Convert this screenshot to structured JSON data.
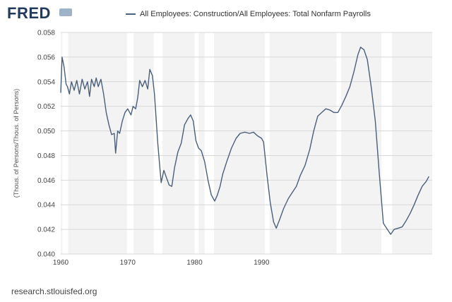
{
  "header": {
    "logo_text": "FRED",
    "logo_icon": "chart-line-icon",
    "source": "research.stlouisfed.org"
  },
  "chart_data": {
    "type": "line",
    "series": [
      {
        "name": "All Employees: Construction/All Employees: Total Nonfarm Payrolls",
        "color": "#4a5f7a",
        "points": [
          [
            1960.0,
            0.0531
          ],
          [
            1960.2,
            0.056
          ],
          [
            1960.5,
            0.0552
          ],
          [
            1960.8,
            0.0538
          ],
          [
            1961.0,
            0.0536
          ],
          [
            1961.3,
            0.053
          ],
          [
            1961.6,
            0.054
          ],
          [
            1962.0,
            0.0533
          ],
          [
            1962.4,
            0.0541
          ],
          [
            1962.8,
            0.053
          ],
          [
            1963.2,
            0.0542
          ],
          [
            1963.6,
            0.0534
          ],
          [
            1964.0,
            0.054
          ],
          [
            1964.3,
            0.0528
          ],
          [
            1964.6,
            0.0542
          ],
          [
            1965.0,
            0.0536
          ],
          [
            1965.3,
            0.0543
          ],
          [
            1965.6,
            0.0536
          ],
          [
            1966.0,
            0.0542
          ],
          [
            1966.4,
            0.053
          ],
          [
            1966.8,
            0.0515
          ],
          [
            1967.2,
            0.0505
          ],
          [
            1967.6,
            0.0497
          ],
          [
            1968.0,
            0.0498
          ],
          [
            1968.2,
            0.0482
          ],
          [
            1968.5,
            0.05
          ],
          [
            1968.8,
            0.0498
          ],
          [
            1969.2,
            0.0508
          ],
          [
            1969.6,
            0.0515
          ],
          [
            1970.0,
            0.0518
          ],
          [
            1970.5,
            0.0513
          ],
          [
            1970.8,
            0.052
          ],
          [
            1971.2,
            0.0518
          ],
          [
            1971.5,
            0.0527
          ],
          [
            1971.8,
            0.0541
          ],
          [
            1972.2,
            0.0536
          ],
          [
            1972.6,
            0.0541
          ],
          [
            1973.0,
            0.0534
          ],
          [
            1973.3,
            0.055
          ],
          [
            1973.7,
            0.0545
          ],
          [
            1974.0,
            0.053
          ],
          [
            1974.5,
            0.049
          ],
          [
            1975.0,
            0.0458
          ],
          [
            1975.4,
            0.0468
          ],
          [
            1975.8,
            0.0462
          ],
          [
            1976.2,
            0.0456
          ],
          [
            1976.6,
            0.0455
          ],
          [
            1977.0,
            0.047
          ],
          [
            1977.5,
            0.0483
          ],
          [
            1978.0,
            0.049
          ],
          [
            1978.5,
            0.0505
          ],
          [
            1979.0,
            0.051
          ],
          [
            1979.4,
            0.0513
          ],
          [
            1979.8,
            0.0508
          ],
          [
            1980.2,
            0.0492
          ],
          [
            1980.6,
            0.0486
          ],
          [
            1981.0,
            0.0484
          ],
          [
            1981.5,
            0.0475
          ],
          [
            1982.0,
            0.046
          ],
          [
            1982.5,
            0.0448
          ],
          [
            1983.0,
            0.0443
          ],
          [
            1983.4,
            0.0448
          ],
          [
            1983.8,
            0.0455
          ],
          [
            1984.2,
            0.0465
          ],
          [
            1984.8,
            0.0475
          ],
          [
            1985.5,
            0.0486
          ],
          [
            1986.2,
            0.0494
          ],
          [
            1986.8,
            0.0498
          ],
          [
            1987.5,
            0.0499
          ],
          [
            1988.2,
            0.0498
          ],
          [
            1988.8,
            0.0499
          ],
          [
            1989.4,
            0.0496
          ],
          [
            1990.0,
            0.0494
          ],
          [
            1990.3,
            0.0491
          ],
          [
            1990.8,
            0.0465
          ],
          [
            1991.3,
            0.0442
          ],
          [
            1991.8,
            0.0426
          ],
          [
            1992.2,
            0.0421
          ],
          [
            1992.7,
            0.0428
          ],
          [
            1993.3,
            0.0437
          ],
          [
            1994.0,
            0.0445
          ],
          [
            1994.6,
            0.045
          ],
          [
            1995.2,
            0.0455
          ],
          [
            1995.8,
            0.0464
          ],
          [
            1996.5,
            0.0472
          ],
          [
            1997.2,
            0.0485
          ],
          [
            1997.8,
            0.05
          ],
          [
            1998.4,
            0.0512
          ],
          [
            1999.0,
            0.0515
          ],
          [
            1999.6,
            0.0518
          ],
          [
            2000.2,
            0.0517
          ],
          [
            2000.8,
            0.0515
          ],
          [
            2001.4,
            0.0515
          ],
          [
            2002.0,
            0.0521
          ],
          [
            2002.6,
            0.0528
          ],
          [
            2003.2,
            0.0536
          ],
          [
            2003.8,
            0.0548
          ],
          [
            2004.4,
            0.0562
          ],
          [
            2004.8,
            0.0568
          ],
          [
            2005.3,
            0.0566
          ],
          [
            2005.8,
            0.0558
          ],
          [
            2006.4,
            0.0535
          ],
          [
            2007.0,
            0.0508
          ],
          [
            2007.6,
            0.0465
          ],
          [
            2008.2,
            0.0425
          ],
          [
            2008.8,
            0.042
          ],
          [
            2009.3,
            0.0416
          ],
          [
            2009.8,
            0.042
          ],
          [
            2010.4,
            0.0421
          ],
          [
            2011.0,
            0.0422
          ],
          [
            2011.6,
            0.0427
          ],
          [
            2012.2,
            0.0433
          ],
          [
            2012.8,
            0.044
          ],
          [
            2013.4,
            0.0448
          ],
          [
            2014.0,
            0.0455
          ],
          [
            2014.6,
            0.0459
          ],
          [
            2015.0,
            0.0463
          ]
        ]
      }
    ],
    "recessions": [
      [
        1960.25,
        1961.1
      ],
      [
        1969.9,
        1970.9
      ],
      [
        1973.9,
        1975.2
      ],
      [
        1980.0,
        1980.6
      ],
      [
        1981.5,
        1982.9
      ],
      [
        1990.5,
        1991.2
      ],
      [
        2001.2,
        2001.9
      ],
      [
        2007.9,
        2009.5
      ]
    ],
    "xlim": [
      1960,
      2015.5
    ],
    "ylim": [
      0.04,
      0.058
    ],
    "x_ticks": [
      1960,
      1970,
      1980,
      1990
    ],
    "x_tick_labels": [
      "1960",
      "1970",
      "1980",
      "1990"
    ],
    "y_ticks": [
      0.04,
      0.042,
      0.044,
      0.046,
      0.048,
      0.05,
      0.052,
      0.054,
      0.056,
      0.058
    ],
    "y_tick_labels": [
      "0.040",
      "0.042",
      "0.044",
      "0.046",
      "0.048",
      "0.050",
      "0.052",
      "0.054",
      "0.056",
      "0.058"
    ],
    "ylabel": "(Thous. of Persons/Thous. of Persons)",
    "xlabel": "",
    "grid": true,
    "recession_color": "#e6e6e6",
    "legend_position": "top"
  }
}
